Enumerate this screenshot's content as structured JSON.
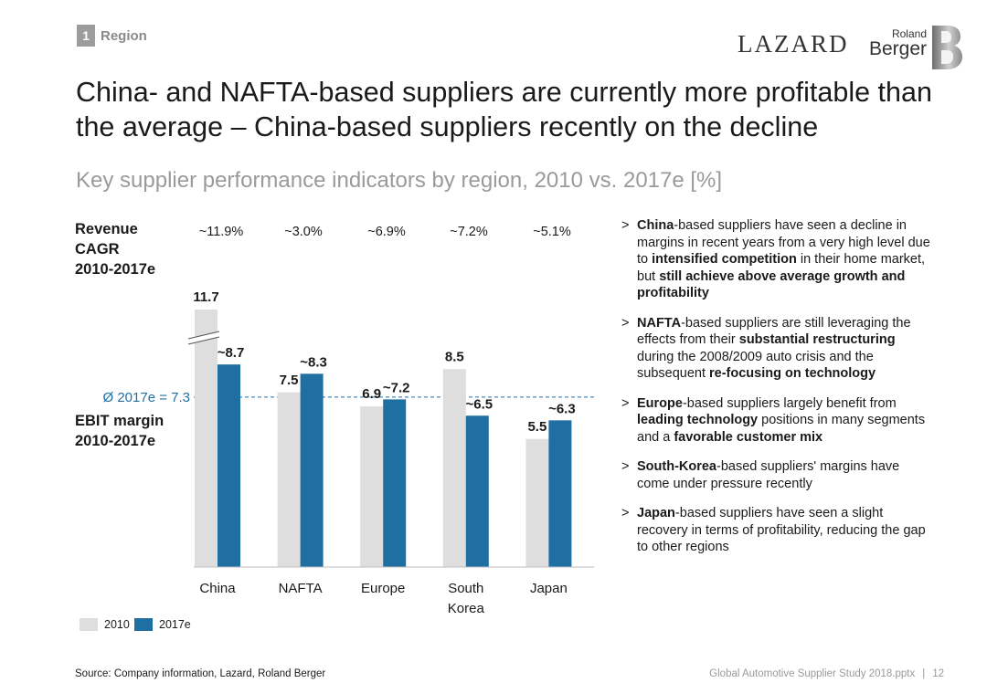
{
  "header": {
    "section_number": "1",
    "section_label": "Region",
    "logo_lazard": "LAZARD",
    "logo_rb_small": "Roland",
    "logo_rb_big": "Berger"
  },
  "headline": "China- and NAFTA-based suppliers are currently more profitable than the average – China-based suppliers recently on the decline",
  "subtitle": "Key supplier performance indicators by region, 2010 vs. 2017e [%]",
  "labels": {
    "revenue_label_1": "Revenue",
    "revenue_label_2": "CAGR",
    "revenue_label_3": "2010-2017e",
    "ebit_label_1": "EBIT margin",
    "ebit_label_2": "2010-2017e",
    "average_label": "Ø 2017e = 7.3"
  },
  "cagr": [
    "~11.9%",
    "~3.0%",
    "~6.9%",
    "~7.2%",
    "~5.1%"
  ],
  "chart_data": {
    "type": "bar",
    "categories": [
      "China",
      "NAFTA",
      "Europe",
      "South Korea",
      "Japan"
    ],
    "category_lines": [
      [
        "China"
      ],
      [
        "NAFTA"
      ],
      [
        "Europe"
      ],
      [
        "South",
        "Korea"
      ],
      [
        "Japan"
      ]
    ],
    "series": [
      {
        "name": "2010",
        "values": [
          11.7,
          7.5,
          6.9,
          8.5,
          5.5
        ],
        "labels": [
          "11.7",
          "7.5",
          "6.9",
          "8.5",
          "5.5"
        ],
        "color": "#dedede"
      },
      {
        "name": "2017e",
        "values": [
          8.7,
          8.3,
          7.2,
          6.5,
          6.3
        ],
        "labels": [
          "~8.7",
          "~8.3",
          "~7.2",
          "~6.5",
          "~6.3"
        ],
        "color": "#1f6fa3"
      }
    ],
    "average_line": {
      "value": 7.3
    },
    "axis_break_on": "China 2010",
    "legend": "bottom-left"
  },
  "legend": {
    "item_2010": "2010",
    "item_2017": "2017e"
  },
  "bullets": [
    [
      {
        "t": "China",
        "b": true
      },
      {
        "t": "-based suppliers have seen a decline in margins in recent years from a very high level due to "
      },
      {
        "t": "intensified competition",
        "b": true
      },
      {
        "t": " in their home market, but "
      },
      {
        "t": "still achieve above average growth and profitability",
        "b": true
      }
    ],
    [
      {
        "t": "NAFTA",
        "b": true
      },
      {
        "t": "-based suppliers are still leveraging the effects from their "
      },
      {
        "t": "substantial restructuring",
        "b": true
      },
      {
        "t": " during the 2008/2009 auto crisis and the subsequent "
      },
      {
        "t": "re-focusing on technology",
        "b": true
      }
    ],
    [
      {
        "t": "Europe",
        "b": true
      },
      {
        "t": "-based suppliers largely benefit from "
      },
      {
        "t": "leading technology",
        "b": true
      },
      {
        "t": " positions in many segments and a "
      },
      {
        "t": "favorable customer mix",
        "b": true
      }
    ],
    [
      {
        "t": "South-Korea",
        "b": true
      },
      {
        "t": "-based suppliers' margins have come under pressure recently"
      }
    ],
    [
      {
        "t": "Japan",
        "b": true
      },
      {
        "t": "-based suppliers have seen a slight recovery in terms of profitability, reducing the gap to other regions"
      }
    ]
  ],
  "bullet_marker": ">",
  "footer": {
    "source": "Source: Company information, Lazard, Roland Berger",
    "file": "Global Automotive Supplier Study 2018.pptx",
    "separator": "|",
    "page": "12"
  },
  "colors": {
    "accent": "#1f6fa3",
    "bar_2010": "#dedede",
    "subtitle_gray": "#9a9a9a"
  }
}
